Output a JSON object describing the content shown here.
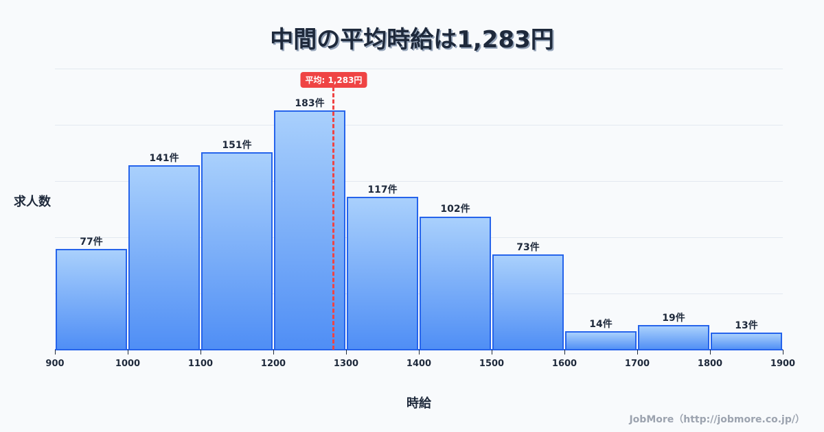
{
  "title": "中間の平均時給は1,283円",
  "ylabel": "求人数",
  "xlabel": "時給",
  "credit": "JobMore（http://jobmore.co.jp/）",
  "mean_badge": "平均: 1,283円",
  "colors": {
    "bar_top": "#a9d0fc",
    "bar_bottom": "#4f8ef5",
    "bar_border": "#2563eb",
    "mean_line": "#ef4444",
    "text": "#1e293b",
    "background": "#f8fafc"
  },
  "chart_data": {
    "type": "bar",
    "title": "中間の平均時給は1,283円",
    "xlabel": "時給",
    "ylabel": "求人数",
    "bin_edges": [
      900,
      1000,
      1100,
      1200,
      1300,
      1400,
      1500,
      1600,
      1700,
      1800,
      1900
    ],
    "categories": [
      "900-1000",
      "1000-1100",
      "1100-1200",
      "1200-1300",
      "1300-1400",
      "1400-1500",
      "1500-1600",
      "1600-1700",
      "1700-1800",
      "1800-1900"
    ],
    "values": [
      77,
      141,
      151,
      183,
      117,
      102,
      73,
      14,
      19,
      13
    ],
    "value_labels": [
      "77件",
      "141件",
      "151件",
      "183件",
      "117件",
      "102件",
      "73件",
      "14件",
      "19件",
      "13件"
    ],
    "x_tick_labels": [
      "900",
      "1000",
      "1100",
      "1200",
      "1300",
      "1400",
      "1500",
      "1600",
      "1700",
      "1800",
      "1900"
    ],
    "xlim": [
      900,
      1900
    ],
    "ylim": [
      0,
      215
    ],
    "grid": true,
    "annotations": [
      {
        "type": "vline",
        "x": 1283,
        "label": "平均: 1,283円",
        "color": "#ef4444",
        "style": "dashed"
      }
    ],
    "legend": null
  }
}
